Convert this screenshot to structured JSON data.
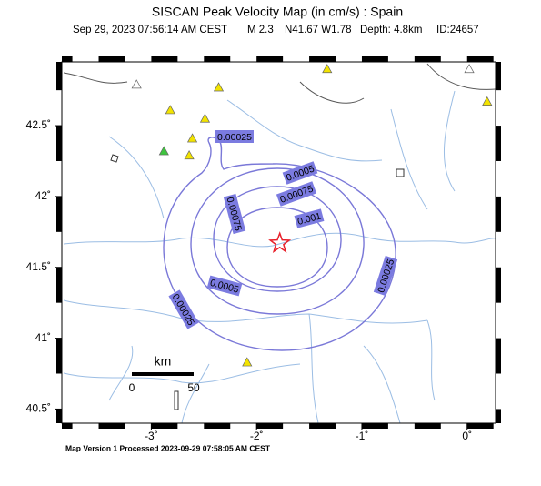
{
  "header": {
    "title": "SISCAN Peak Velocity Map (in cm/s) : Spain",
    "date": "Sep 29, 2023 07:56:14 AM CEST",
    "magnitude": "M 2.3",
    "location": "N41.67 W1.78",
    "depth": "Depth: 4.8km",
    "id": "ID:24657"
  },
  "map": {
    "xlim": [
      -3.85,
      0.27
    ],
    "ylim": [
      40.4,
      42.95
    ],
    "xticks": [
      {
        "value": -3,
        "label": "-3˚"
      },
      {
        "value": -2,
        "label": "-2˚"
      },
      {
        "value": -1,
        "label": "-1˚"
      },
      {
        "value": 0,
        "label": "0˚"
      }
    ],
    "yticks": [
      {
        "value": 40.5,
        "label": "40.5˚"
      },
      {
        "value": 41,
        "label": "41˚"
      },
      {
        "value": 41.5,
        "label": "41.5˚"
      },
      {
        "value": 42,
        "label": "42˚"
      },
      {
        "value": 42.5,
        "label": "42.5˚"
      }
    ],
    "epicenter": {
      "lon": -1.78,
      "lat": 41.67,
      "color": "#e8202a"
    },
    "contour_color": "#7a78d8",
    "label_color": "#7b7be0",
    "contours": [
      {
        "level": 0.00025
      },
      {
        "level": 0.0005
      },
      {
        "level": 0.00075
      },
      {
        "level": 0.001
      }
    ],
    "stations": [
      {
        "lon": -2.36,
        "lat": 42.77,
        "color": "#f2e300"
      },
      {
        "lon": -2.82,
        "lat": 42.61,
        "color": "#f2e300"
      },
      {
        "lon": -2.49,
        "lat": 42.55,
        "color": "#f2e300"
      },
      {
        "lon": -2.61,
        "lat": 42.41,
        "color": "#f2e300"
      },
      {
        "lon": -2.64,
        "lat": 42.29,
        "color": "#f2e300"
      },
      {
        "lon": -2.09,
        "lat": 40.83,
        "color": "#f2e300"
      },
      {
        "lon": -1.33,
        "lat": 42.9,
        "color": "#f2e300"
      },
      {
        "lon": 0.19,
        "lat": 42.67,
        "color": "#f2e300"
      },
      {
        "lon": -2.88,
        "lat": 42.32,
        "color": "#3ec43e"
      },
      {
        "lon": -3.14,
        "lat": 42.79,
        "color": "#ffffff"
      },
      {
        "lon": 0.02,
        "lat": 42.9,
        "color": "#ffffff"
      }
    ],
    "scale_bar": {
      "title": "km",
      "ticks": [
        0,
        50
      ]
    }
  },
  "footer": "Map Version 1 Processed 2023-09-29 07:58:05 AM CEST"
}
